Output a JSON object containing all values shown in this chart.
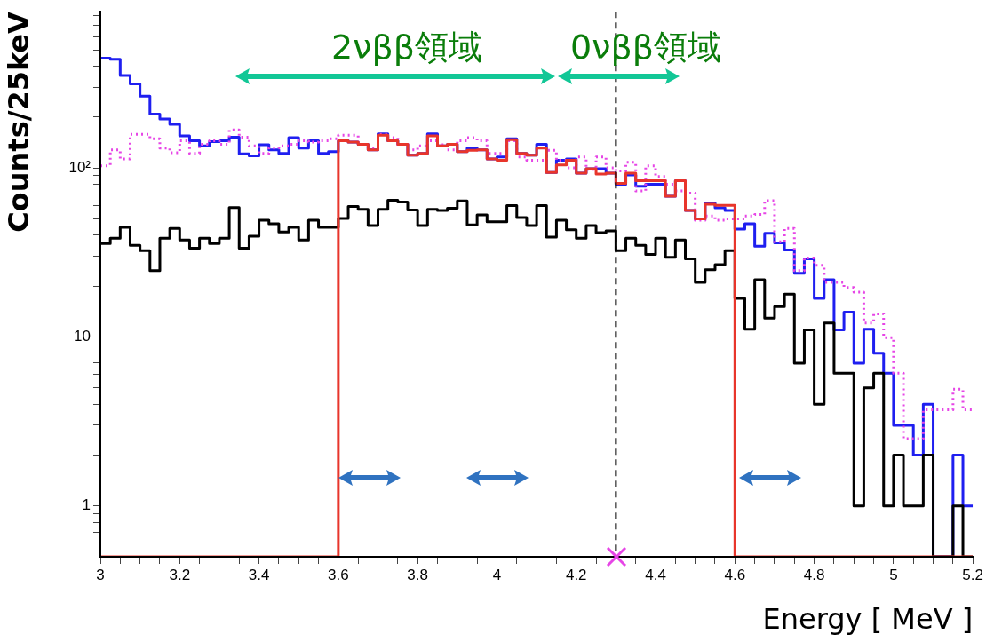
{
  "chart_data": {
    "type": "histogram",
    "xlabel": "Energy [ MeV ]",
    "ylabel": "Counts/25keV",
    "bins": [
      3,
      3.025,
      3.05,
      3.075,
      3.1,
      3.125,
      3.15,
      3.175,
      3.2,
      3.225,
      3.25,
      3.275,
      3.3,
      3.325,
      3.35,
      3.375,
      3.4,
      3.425,
      3.45,
      3.475,
      3.5,
      3.525,
      3.55,
      3.575,
      3.6,
      3.625,
      3.65,
      3.675,
      3.7,
      3.725,
      3.75,
      3.775,
      3.8,
      3.825,
      3.85,
      3.875,
      3.9,
      3.925,
      3.95,
      3.975,
      4,
      4.025,
      4.05,
      4.075,
      4.1,
      4.125,
      4.15,
      4.175,
      4.2,
      4.225,
      4.25,
      4.275,
      4.3,
      4.325,
      4.35,
      4.375,
      4.4,
      4.425,
      4.45,
      4.475,
      4.5,
      4.525,
      4.55,
      4.575,
      4.6,
      4.625,
      4.65,
      4.675,
      4.7,
      4.725,
      4.75,
      4.775,
      4.8,
      4.825,
      4.85,
      4.875,
      4.9,
      4.925,
      4.95,
      4.975,
      5,
      5.025,
      5.05,
      5.075,
      5.1,
      5.125,
      5.15,
      5.175,
      5.2
    ],
    "series": [
      {
        "color": "#1f1ff0",
        "line_style": "solid",
        "values": [
          446,
          439,
          352,
          314,
          266,
          208,
          195,
          181,
          155,
          145,
          135,
          143,
          145,
          152,
          121,
          118,
          137,
          128,
          122,
          151,
          131,
          145,
          122,
          125,
          145,
          142,
          138,
          128,
          159,
          145,
          138,
          119,
          122,
          159,
          135,
          138,
          125,
          131,
          128,
          113,
          116,
          149,
          122,
          119,
          138,
          94,
          111,
          113,
          93,
          99,
          99,
          93,
          80,
          91,
          78,
          80,
          80,
          68,
          84,
          56,
          50,
          62,
          58,
          56,
          43.5,
          46.7,
          34.4,
          41,
          36,
          32.7,
          23.8,
          29,
          16.9,
          21.8,
          11,
          14,
          7,
          11.1,
          8,
          6.1,
          3,
          3,
          2,
          4,
          null,
          null,
          2,
          1
        ]
      },
      {
        "color": "#e645e6",
        "line_style": "dotted",
        "values": [
          103,
          128,
          113,
          158,
          158,
          149,
          131,
          123,
          145,
          122,
          138,
          145,
          138,
          168,
          152,
          135,
          122,
          131,
          135,
          138,
          145,
          142,
          145,
          149,
          156,
          156,
          138,
          131,
          158,
          151,
          138,
          128,
          135,
          145,
          137,
          128,
          145,
          151,
          145,
          122,
          122,
          145,
          116,
          111,
          111,
          127,
          111,
          100,
          116,
          98,
          116,
          100,
          96,
          108,
          73,
          103,
          89,
          80,
          73,
          71,
          49,
          52,
          49,
          50,
          50,
          52,
          53,
          64,
          36.6,
          43.9,
          24.7,
          29.3,
          26.5,
          21,
          21,
          19.6,
          18.4,
          12.1,
          13.7,
          9.9,
          6.1,
          2.5,
          2.5,
          3.7,
          3.7,
          3.7,
          4.9,
          3.7
        ]
      },
      {
        "color": "#000000",
        "line_style": "solid",
        "values": [
          35.7,
          38.4,
          44.5,
          34.8,
          32.4,
          24.7,
          38.4,
          43.9,
          37.5,
          33.5,
          38.4,
          35.7,
          38.4,
          58.3,
          33.5,
          39.4,
          49.1,
          46.7,
          41.8,
          44.5,
          37.5,
          49.1,
          44.5,
          44.5,
          50.3,
          59.2,
          56.9,
          45.6,
          56.9,
          64.4,
          62.8,
          56.3,
          45.6,
          56.9,
          56,
          57.8,
          63.8,
          46,
          52.8,
          48,
          48,
          59.8,
          50.8,
          45.6,
          59.8,
          39,
          49.1,
          43,
          38.4,
          45.6,
          41.4,
          42.4,
          32.4,
          38.4,
          34.8,
          30.8,
          38.4,
          29.6,
          37.5,
          29,
          21,
          25,
          26.8,
          32.4,
          16.9,
          11.1,
          21.8,
          12.9,
          15.1,
          17.9,
          7,
          11,
          4,
          12.1,
          6.1,
          6.1,
          1,
          5,
          6.1,
          1,
          2,
          1,
          1,
          2,
          null,
          null,
          1,
          null
        ]
      },
      {
        "color": "#e8352b",
        "line_style": "solid",
        "values": [
          null,
          null,
          null,
          null,
          null,
          null,
          null,
          null,
          null,
          null,
          null,
          null,
          null,
          null,
          null,
          null,
          null,
          null,
          null,
          null,
          null,
          null,
          null,
          null,
          145,
          142,
          138,
          128,
          156,
          145,
          138,
          119,
          122,
          155,
          135,
          138,
          125,
          127,
          128,
          113,
          111,
          147,
          122,
          119,
          131,
          94,
          104,
          111,
          93,
          99,
          92,
          93,
          81,
          93,
          84,
          84,
          84,
          68,
          84,
          56,
          50,
          61,
          60,
          60,
          null,
          null,
          null,
          null,
          null,
          null,
          null,
          null,
          null,
          null,
          null,
          null,
          null,
          null,
          null,
          null,
          null,
          null,
          null,
          null,
          null,
          null,
          null,
          null
        ]
      }
    ],
    "ref_lines": [
      {
        "axis": "x",
        "value": 4.3,
        "color": "#000000",
        "line_style": "dashed"
      }
    ],
    "annotations": [
      "2νββ領域",
      "0νββ領域"
    ],
    "log": "y",
    "grid": false,
    "legend": false,
    "xlim": [
      3,
      5.2
    ],
    "xticks": [
      3,
      {
        "value": 3.05,
        "label": null
      },
      {
        "value": 3.1,
        "label": null
      },
      {
        "value": 3.15,
        "label": null
      },
      3.2,
      {
        "value": 3.25,
        "label": null
      },
      {
        "value": 3.3,
        "label": null
      },
      {
        "value": 3.35,
        "label": null
      },
      3.4,
      {
        "value": 3.45,
        "label": null
      },
      {
        "value": 3.5,
        "label": null
      },
      {
        "value": 3.55,
        "label": null
      },
      3.6,
      {
        "value": 3.65,
        "label": null
      },
      {
        "value": 3.7,
        "label": null
      },
      {
        "value": 3.75,
        "label": null
      },
      3.8,
      {
        "value": 3.85,
        "label": null
      },
      {
        "value": 3.9,
        "label": null
      },
      {
        "value": 3.95,
        "label": null
      },
      4,
      {
        "value": 4.05,
        "label": null
      },
      {
        "value": 4.1,
        "label": null
      },
      {
        "value": 4.15,
        "label": null
      },
      4.2,
      {
        "value": 4.25,
        "label": null
      },
      {
        "value": 4.3,
        "label": null
      },
      {
        "value": 4.35,
        "label": null
      },
      4.4,
      {
        "value": 4.45,
        "label": null
      },
      {
        "value": 4.5,
        "label": null
      },
      {
        "value": 4.55,
        "label": null
      },
      4.6,
      {
        "value": 4.65,
        "label": null
      },
      {
        "value": 4.7,
        "label": null
      },
      {
        "value": 4.75,
        "label": null
      },
      4.8,
      {
        "value": 4.85,
        "label": null
      },
      {
        "value": 4.9,
        "label": null
      },
      {
        "value": 4.95,
        "label": null
      },
      5,
      {
        "value": 5.05,
        "label": null
      },
      {
        "value": 5.1,
        "label": null
      },
      {
        "value": 5.15,
        "label": null
      },
      5.2
    ],
    "ylim": [
      0.5,
      840
    ],
    "yticks": [
      {
        "value": 0.6,
        "label": null
      },
      {
        "value": 0.7,
        "label": null
      },
      {
        "value": 0.8,
        "label": null
      },
      {
        "value": 0.9,
        "label": null
      },
      1,
      {
        "value": 2,
        "label": null
      },
      {
        "value": 3,
        "label": null
      },
      {
        "value": 4,
        "label": null
      },
      {
        "value": 5,
        "label": null
      },
      {
        "value": 6,
        "label": null
      },
      {
        "value": 7,
        "label": null
      },
      {
        "value": 8,
        "label": null
      },
      {
        "value": 9,
        "label": null
      },
      10,
      {
        "value": 20,
        "label": null
      },
      {
        "value": 30,
        "label": null
      },
      {
        "value": 40,
        "label": null
      },
      {
        "value": 50,
        "label": null
      },
      {
        "value": 60,
        "label": null
      },
      {
        "value": 70,
        "label": null
      },
      {
        "value": 80,
        "label": null
      },
      {
        "value": 90,
        "label": null
      },
      {
        "value": 100,
        "label": "10²"
      },
      {
        "value": 200,
        "label": null
      },
      {
        "value": 300,
        "label": null
      },
      {
        "value": 400,
        "label": null
      },
      {
        "value": 500,
        "label": null
      },
      {
        "value": 600,
        "label": null
      },
      {
        "value": 700,
        "label": null
      },
      {
        "value": 800,
        "label": null
      }
    ]
  }
}
